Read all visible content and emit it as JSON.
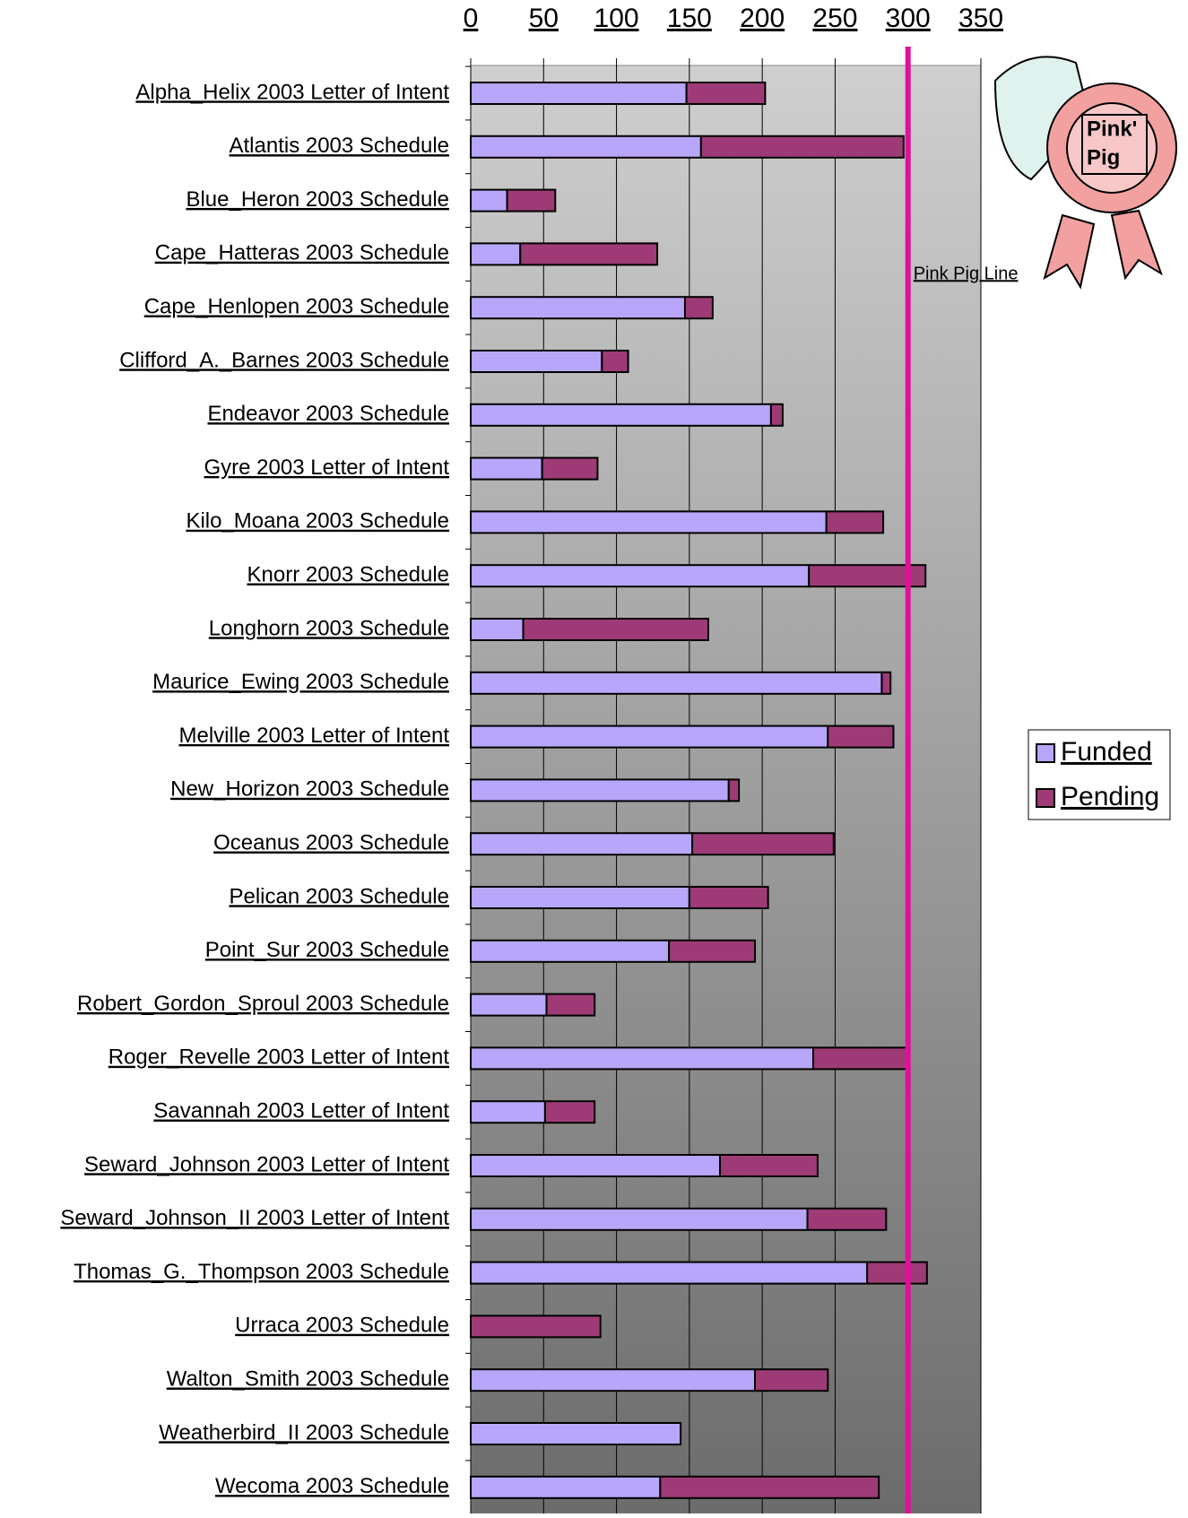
{
  "chart_data": {
    "type": "bar",
    "orientation": "horizontal",
    "stacked": true,
    "categories": [
      "Alpha_Helix 2003 Letter of Intent",
      "Atlantis 2003 Schedule",
      "Blue_Heron 2003 Schedule",
      "Cape_Hatteras 2003 Schedule",
      "Cape_Henlopen 2003 Schedule",
      "Clifford_A._Barnes 2003 Schedule",
      "Endeavor 2003 Schedule",
      "Gyre 2003 Letter of Intent",
      "Kilo_Moana 2003 Schedule",
      "Knorr 2003 Schedule",
      "Longhorn 2003 Schedule",
      "Maurice_Ewing 2003 Schedule",
      "Melville 2003 Letter of Intent",
      "New_Horizon 2003 Schedule",
      "Oceanus 2003 Schedule",
      "Pelican 2003 Schedule",
      "Point_Sur 2003 Schedule",
      "Robert_Gordon_Sproul 2003 Schedule",
      "Roger_Revelle 2003 Letter of Intent",
      "Savannah 2003 Letter of Intent",
      "Seward_Johnson 2003 Letter of Intent",
      "Seward_Johnson_II 2003 Letter of Intent",
      "Thomas_G._Thompson 2003 Schedule",
      "Urraca 2003 Schedule",
      "Walton_Smith 2003 Schedule",
      "Weatherbird_II 2003 Schedule",
      "Wecoma 2003 Schedule"
    ],
    "series": [
      {
        "name": "Funded",
        "color": "#b7a6f9",
        "values": [
          148,
          158,
          25,
          34,
          147,
          90,
          206,
          49,
          244,
          232,
          36,
          282,
          245,
          177,
          152,
          150,
          136,
          52,
          235,
          51,
          171,
          231,
          272,
          0,
          195,
          144,
          130
        ]
      },
      {
        "name": "Pending",
        "color": "#9e3b76",
        "values": [
          54,
          139,
          33,
          94,
          19,
          18,
          8,
          38,
          39,
          80,
          127,
          6,
          45,
          7,
          97,
          54,
          59,
          33,
          65,
          34,
          67,
          54,
          41,
          89,
          50,
          0,
          150
        ]
      }
    ],
    "xlim": [
      0,
      350
    ],
    "xticks": [
      0,
      50,
      100,
      150,
      200,
      250,
      300,
      350
    ],
    "grid": true,
    "reference_line": {
      "value": 300,
      "label": "Pink Pig Line",
      "color": "#e0109a"
    },
    "legend": "right"
  },
  "badge": [
    "Pink'",
    "Pig"
  ]
}
